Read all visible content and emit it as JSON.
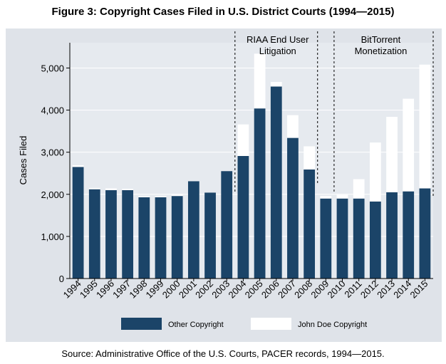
{
  "title": "Figure 3: Copyright Cases Filed in U.S. District Courts (1994—2015)",
  "source": "Source: Administrative Office of the U.S. Courts, PACER records, 1994—2015.",
  "chart_data": {
    "type": "bar",
    "stacked": true,
    "categories": [
      "1994",
      "1995",
      "1996",
      "1997",
      "1998",
      "1999",
      "2000",
      "2001",
      "2002",
      "2003",
      "2004",
      "2005",
      "2006",
      "2007",
      "2008",
      "2009",
      "2010",
      "2011",
      "2012",
      "2013",
      "2014",
      "2015"
    ],
    "series": [
      {
        "name": "Other Copyright",
        "color": "#1b4468",
        "values": [
          2650,
          2120,
          2100,
          2100,
          1930,
          1930,
          1960,
          2310,
          2040,
          2550,
          2910,
          4040,
          4560,
          3340,
          2590,
          1900,
          1900,
          1900,
          1830,
          2050,
          2070,
          2140
        ]
      },
      {
        "name": "John Doe Copyright",
        "color": "#ffffff",
        "values": [
          40,
          30,
          40,
          30,
          30,
          30,
          30,
          0,
          0,
          0,
          750,
          1300,
          110,
          540,
          550,
          60,
          90,
          460,
          1400,
          1790,
          2200,
          2940
        ]
      }
    ],
    "ylabel": "Cases Filed",
    "xlabel": "",
    "ylim": [
      0,
      5600
    ],
    "yticks": [
      0,
      1000,
      2000,
      3000,
      4000,
      5000
    ],
    "ytick_labels": [
      "0",
      "1,000",
      "2,000",
      "3,000",
      "4,000",
      "5,000"
    ],
    "legend_position": "bottom",
    "grid": true,
    "annotations": [
      {
        "label_lines": [
          "RIAA End User",
          "Litigation"
        ],
        "from": "2004",
        "to": "2008"
      },
      {
        "label_lines": [
          "BitTorrent",
          "Monetization"
        ],
        "from": "2010",
        "to": "2015"
      }
    ]
  }
}
